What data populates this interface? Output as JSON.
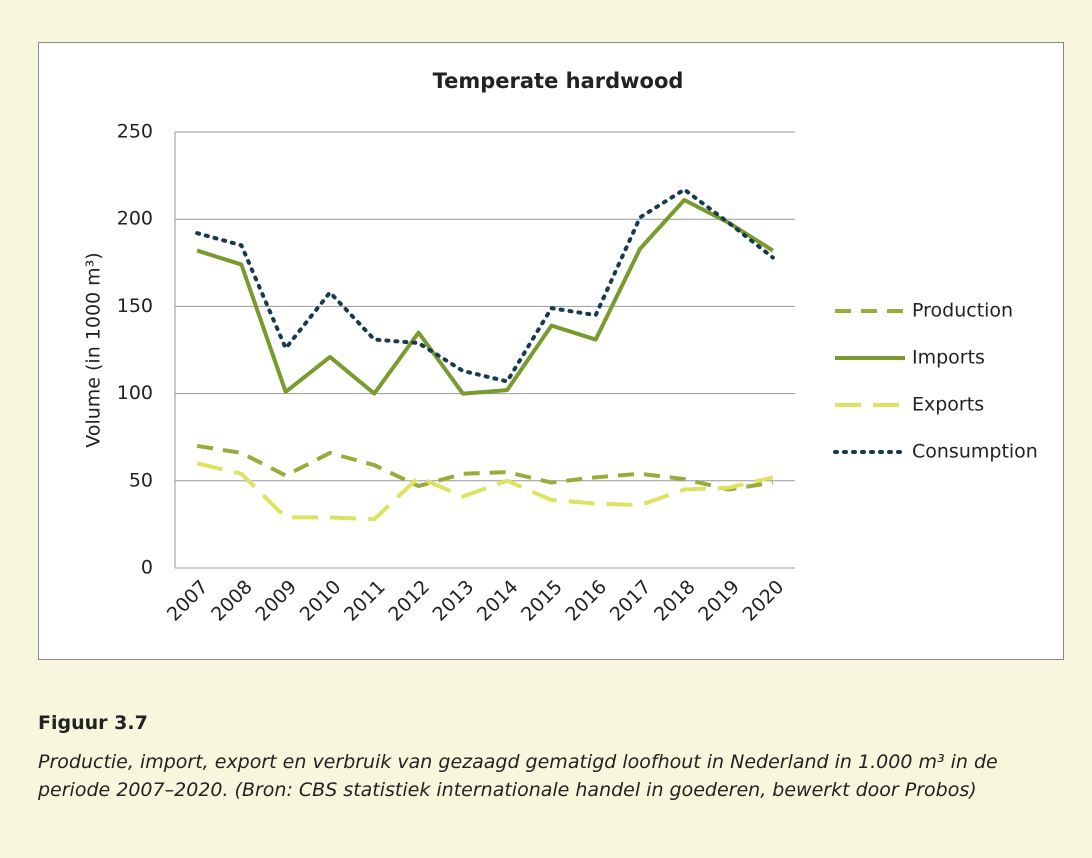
{
  "chart_data": {
    "type": "line",
    "title": "Temperate hardwood",
    "y_label": "Volume (in 1000 m³)",
    "categories": [
      "2007",
      "2008",
      "2009",
      "2010",
      "2011",
      "2012",
      "2013",
      "2014",
      "2015",
      "2016",
      "2017",
      "2018",
      "2019",
      "2020"
    ],
    "series": [
      {
        "name": "Production",
        "color": "#9aab3a",
        "dash": "dashed",
        "values": [
          70,
          66,
          53,
          66,
          59,
          47,
          54,
          55,
          49,
          52,
          54,
          51,
          45,
          49
        ]
      },
      {
        "name": "Imports",
        "color": "#7a9a2e",
        "dash": "solid",
        "values": [
          182,
          174,
          101,
          121,
          100,
          135,
          100,
          102,
          139,
          131,
          183,
          211,
          198,
          182
        ]
      },
      {
        "name": "Exports",
        "color": "#dde360",
        "dash": "longdash",
        "values": [
          60,
          54,
          29,
          29,
          28,
          52,
          41,
          50,
          39,
          37,
          36,
          45,
          46,
          52
        ]
      },
      {
        "name": "Consumption",
        "color": "#173a4f",
        "dash": "dotted",
        "values": [
          192,
          185,
          126,
          158,
          131,
          129,
          113,
          107,
          149,
          145,
          201,
          217,
          198,
          178
        ]
      }
    ],
    "ylim": [
      0,
      250
    ],
    "yticks": [
      0,
      50,
      100,
      150,
      200,
      250
    ],
    "grid": true,
    "legend": "right"
  },
  "caption": {
    "label": "Figuur 3.7",
    "text": "Productie, import, export en verbruik van gezaagd gematigd loofhout in Nederland in 1.000 m³ in de periode 2007–2020. (Bron: CBS statistiek internationale handel in goederen, bewerkt door Probos)"
  }
}
